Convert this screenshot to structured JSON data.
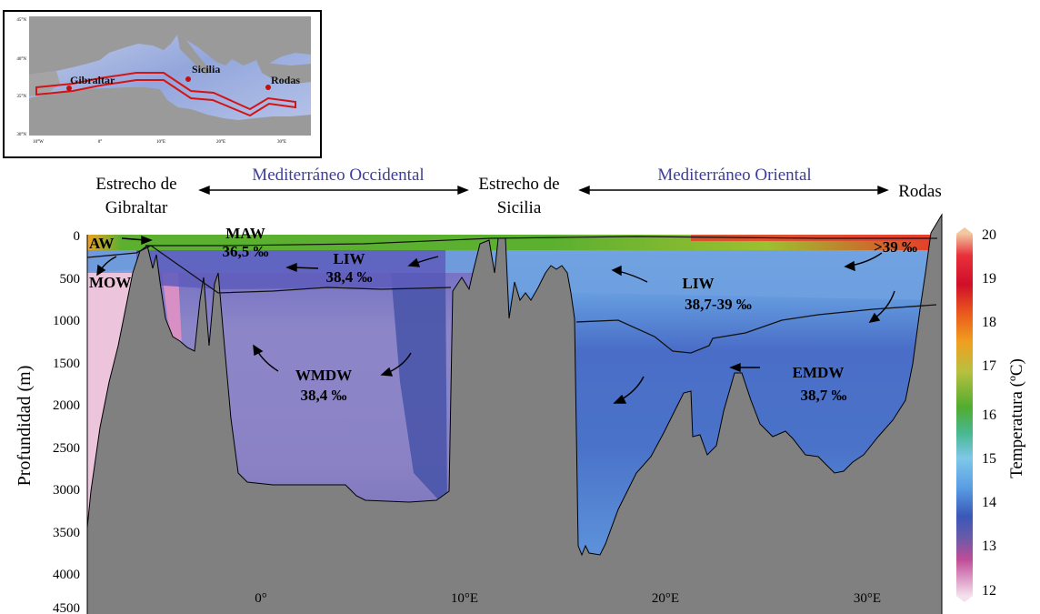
{
  "inset_map": {
    "lat_ticks": [
      "45°N",
      "40°N",
      "35°N",
      "30°N"
    ],
    "lon_ticks": [
      "10°W",
      "0°",
      "10°E",
      "20°E",
      "30°E"
    ],
    "places": [
      {
        "name": "Gibraltar"
      },
      {
        "name": "Sicilia"
      },
      {
        "name": "Rodas"
      }
    ],
    "colors": {
      "land": "#9a9a9a",
      "sea_shallow": "#c8d2e8",
      "sea_deep": "#8a9ed8",
      "track": "#d41414"
    }
  },
  "header": {
    "left_strait": [
      "Estrecho de",
      "Gibraltar"
    ],
    "middle_strait": [
      "Estrecho de",
      "Sicilia"
    ],
    "right_place": "Rodas",
    "basin_west": "Mediterráneo Occidental",
    "basin_east": "Mediterráneo Oriental",
    "basin_color": "#3d3d9e"
  },
  "section": {
    "ylabel": "Profundidad (m)",
    "y_ticks": [
      "0",
      "500",
      "1000",
      "1500",
      "2000",
      "2500",
      "3000",
      "3500",
      "4000",
      "4500"
    ],
    "x_ticks": [
      "0°",
      "10°E",
      "20°E",
      "30°E"
    ],
    "water_masses": [
      {
        "id": "aw",
        "name": "AW",
        "value": ""
      },
      {
        "id": "mow",
        "name": "MOW",
        "value": ""
      },
      {
        "id": "maw",
        "name": "MAW",
        "value": "36,5 ‰"
      },
      {
        "id": "liw-west",
        "name": "LIW",
        "value": "38,4 ‰"
      },
      {
        "id": "wmdw",
        "name": "WMDW",
        "value": "38,4 ‰"
      },
      {
        "id": "liw-east",
        "name": "LIW",
        "value": "38,7-39 ‰"
      },
      {
        "id": "emdw",
        "name": "EMDW",
        "value": "38,7 ‰"
      },
      {
        "id": "surface-east",
        "name": ">39 ‰",
        "value": ""
      }
    ],
    "colors": {
      "seafloor": "#808080",
      "surface_warm": "#e64030",
      "surface_green": "#5cb030"
    }
  },
  "colorbar": {
    "label": "Temperatura (ºC)",
    "ticks": [
      "20",
      "19",
      "18",
      "17",
      "16",
      "15",
      "14",
      "13",
      "12"
    ],
    "colors": [
      "#f2c6a0",
      "#d4102a",
      "#f08a20",
      "#c8c850",
      "#5cb030",
      "#58c8c0",
      "#4a9ee8",
      "#3a4aa8",
      "#d060a0",
      "#f4d8ea"
    ]
  }
}
